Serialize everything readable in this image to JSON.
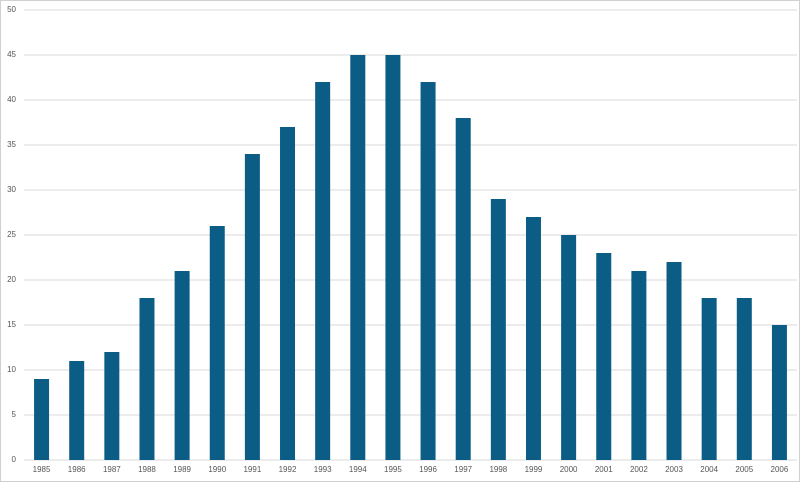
{
  "chart_data": {
    "type": "bar",
    "categories": [
      "1985",
      "1986",
      "1987",
      "1988",
      "1989",
      "1990",
      "1991",
      "1992",
      "1993",
      "1994",
      "1995",
      "1996",
      "1997",
      "1998",
      "1999",
      "2000",
      "2001",
      "2002",
      "2003",
      "2004",
      "2005",
      "2006"
    ],
    "values": [
      9,
      11,
      12,
      18,
      21,
      26,
      34,
      37,
      42,
      45,
      45,
      42,
      38,
      29,
      27,
      25,
      23,
      21,
      22,
      18,
      18,
      15
    ],
    "color": "#0b5d85",
    "ylim": [
      0,
      50
    ],
    "yticks": [
      0,
      5,
      10,
      15,
      20,
      25,
      30,
      35,
      40,
      45,
      50
    ],
    "grid": true
  }
}
